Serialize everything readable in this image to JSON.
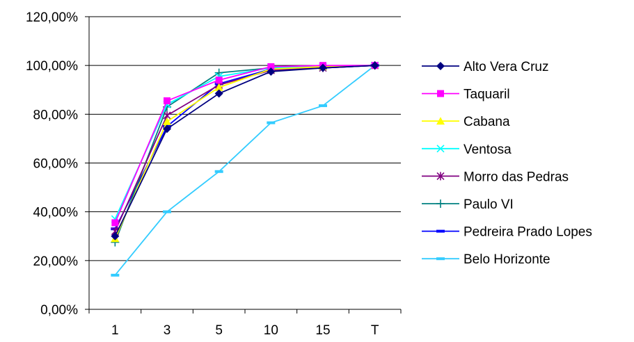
{
  "chart_data": {
    "type": "line",
    "categories": [
      "1",
      "3",
      "5",
      "10",
      "15",
      "T"
    ],
    "y_ticks": [
      "0,00%",
      "20,00%",
      "40,00%",
      "60,00%",
      "80,00%",
      "100,00%",
      "120,00%"
    ],
    "ylim": [
      0,
      120
    ],
    "grid": true,
    "legend_position": "right",
    "series": [
      {
        "name": "Alto Vera Cruz",
        "color": "#000080",
        "marker": "diamond",
        "values": [
          30,
          74,
          88.5,
          97.5,
          99,
          100
        ]
      },
      {
        "name": "Taquaril",
        "color": "#ff00ff",
        "marker": "square",
        "values": [
          35.5,
          85.5,
          94,
          99.5,
          100,
          100
        ]
      },
      {
        "name": "Cabana",
        "color": "#ffff00",
        "marker": "triangle",
        "values": [
          29,
          77,
          91,
          98.5,
          99.5,
          100
        ]
      },
      {
        "name": "Ventosa",
        "color": "#00ffff",
        "marker": "x",
        "values": [
          37,
          84,
          95.5,
          99,
          99.5,
          100
        ]
      },
      {
        "name": "Morro das Pedras",
        "color": "#800080",
        "marker": "star",
        "values": [
          32,
          79.5,
          92,
          98,
          99,
          100
        ]
      },
      {
        "name": "Paulo VI",
        "color": "#008080",
        "marker": "plus",
        "values": [
          27.5,
          83,
          97,
          99,
          99.5,
          100
        ]
      },
      {
        "name": "Pedreira Prado Lopes",
        "color": "#0000ff",
        "marker": "dash",
        "values": [
          33,
          75,
          92.5,
          98.5,
          99,
          100
        ]
      },
      {
        "name": "Belo Horizonte",
        "color": "#33ccff",
        "marker": "dash",
        "values": [
          14,
          40,
          56.5,
          76.5,
          83.5,
          100
        ]
      }
    ]
  }
}
